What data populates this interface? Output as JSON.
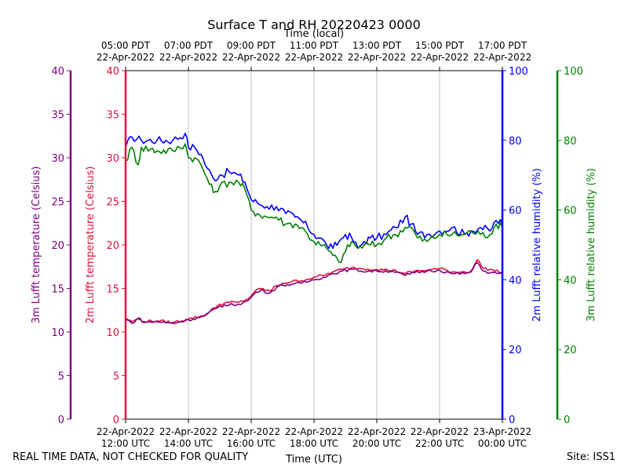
{
  "chart_data": {
    "type": "line",
    "title": "Surface T and RH 20220423 0000",
    "top_axis_label": "Time (local)",
    "bottom_axis_label": "Time (UTC)",
    "top_ticks": [
      {
        "x": 0,
        "line1": "05:00 PDT",
        "line2": "22-Apr-2022"
      },
      {
        "x": 2,
        "line1": "07:00 PDT",
        "line2": "22-Apr-2022"
      },
      {
        "x": 4,
        "line1": "09:00 PDT",
        "line2": "22-Apr-2022"
      },
      {
        "x": 6,
        "line1": "11:00 PDT",
        "line2": "22-Apr-2022"
      },
      {
        "x": 8,
        "line1": "13:00 PDT",
        "line2": "22-Apr-2022"
      },
      {
        "x": 10,
        "line1": "15:00 PDT",
        "line2": "22-Apr-2022"
      },
      {
        "x": 12,
        "line1": "17:00 PDT",
        "line2": "22-Apr-2022"
      }
    ],
    "bottom_ticks": [
      {
        "x": 0,
        "line1": "22-Apr-2022",
        "line2": "12:00 UTC"
      },
      {
        "x": 2,
        "line1": "22-Apr-2022",
        "line2": "14:00 UTC"
      },
      {
        "x": 4,
        "line1": "22-Apr-2022",
        "line2": "16:00 UTC"
      },
      {
        "x": 6,
        "line1": "22-Apr-2022",
        "line2": "18:00 UTC"
      },
      {
        "x": 8,
        "line1": "22-Apr-2022",
        "line2": "20:00 UTC"
      },
      {
        "x": 10,
        "line1": "22-Apr-2022",
        "line2": "22:00 UTC"
      },
      {
        "x": 12,
        "line1": "23-Apr-2022",
        "line2": "00:00 UTC"
      }
    ],
    "xlim": [
      0,
      12
    ],
    "grid": "vertical",
    "axes": [
      {
        "id": "t3m",
        "label": "3m Lufft temperature (Celsius)",
        "side": "left-outer",
        "color": "#800080",
        "ylim": [
          0,
          40
        ],
        "ticks": [
          0,
          5,
          10,
          15,
          20,
          25,
          30,
          35,
          40
        ]
      },
      {
        "id": "t2m",
        "label": "2m Lufft temperature (Celsius)",
        "side": "left-inner",
        "color": "#dc143c",
        "ylim": [
          0,
          40
        ],
        "ticks": [
          0,
          5,
          10,
          15,
          20,
          25,
          30,
          35,
          40
        ]
      },
      {
        "id": "rh2m",
        "label": "2m Lufft relative humidity (%)",
        "side": "right-inner",
        "color": "#0000ff",
        "ylim": [
          0,
          100
        ],
        "ticks": [
          0,
          20,
          40,
          60,
          80,
          100
        ]
      },
      {
        "id": "rh3m",
        "label": "3m Lufft relative humidity (%)",
        "side": "right-outer",
        "color": "#008000",
        "ylim": [
          0,
          100
        ],
        "ticks": [
          0,
          20,
          40,
          60,
          80,
          100
        ]
      }
    ],
    "series": [
      {
        "axis": "rh2m",
        "color": "#0000ff",
        "x": [
          0,
          0.2,
          0.5,
          1.0,
          1.5,
          1.9,
          2.0,
          2.2,
          2.4,
          2.6,
          2.8,
          3.0,
          3.3,
          3.6,
          3.8,
          4.0,
          4.2,
          4.5,
          4.8,
          5.1,
          5.4,
          5.6,
          5.8,
          6.0,
          6.2,
          6.4,
          6.6,
          6.8,
          7.0,
          7.2,
          7.4,
          7.6,
          7.8,
          8.0,
          8.3,
          8.6,
          8.9,
          9.1,
          9.3,
          9.6,
          10.0,
          10.4,
          10.8,
          11.0,
          11.3,
          11.6,
          11.8,
          12.0
        ],
        "y": [
          78,
          81,
          80,
          80,
          80,
          82,
          78,
          78,
          76,
          72,
          69,
          70,
          71,
          70,
          68,
          63,
          62,
          61,
          61,
          59,
          58,
          57,
          55,
          53,
          52,
          50,
          49,
          51,
          53,
          52,
          49,
          51,
          52,
          52,
          53,
          55,
          58,
          56,
          53,
          53,
          54,
          55,
          53,
          54,
          55,
          54,
          57,
          56
        ]
      },
      {
        "axis": "rh3m",
        "color": "#008000",
        "x": [
          0,
          0.2,
          0.4,
          0.5,
          1.0,
          1.5,
          1.9,
          2.0,
          2.2,
          2.4,
          2.6,
          2.8,
          3.0,
          3.3,
          3.6,
          3.8,
          4.0,
          4.2,
          4.5,
          4.8,
          5.1,
          5.4,
          5.6,
          5.8,
          6.0,
          6.2,
          6.4,
          6.6,
          6.8,
          7.0,
          7.2,
          7.4,
          7.6,
          7.8,
          8.0,
          8.3,
          8.6,
          8.9,
          9.1,
          9.3,
          9.6,
          10.0,
          10.4,
          10.8,
          11.0,
          11.3,
          11.6,
          11.8,
          12.0
        ],
        "y": [
          74,
          78,
          73,
          78,
          77,
          77,
          79,
          75,
          75,
          73,
          69,
          65,
          67,
          68,
          68,
          66,
          60,
          59,
          58,
          58,
          56,
          56,
          55,
          53,
          51,
          50,
          49,
          47,
          45,
          48,
          51,
          49,
          50,
          50,
          50,
          52,
          53,
          55,
          55,
          52,
          51,
          53,
          53,
          53,
          54,
          53,
          53,
          56,
          55
        ]
      },
      {
        "axis": "t2m",
        "color": "#dc143c",
        "x": [
          0,
          0.2,
          0.4,
          0.6,
          1.0,
          1.5,
          2.0,
          2.5,
          3.0,
          3.3,
          3.6,
          3.9,
          4.1,
          4.3,
          4.6,
          4.8,
          5.0,
          5.3,
          5.6,
          6.0,
          6.3,
          6.6,
          6.9,
          7.2,
          7.5,
          8.0,
          8.5,
          8.9,
          9.2,
          9.6,
          10.0,
          10.4,
          10.8,
          11.0,
          11.2,
          11.4,
          11.6,
          12.0
        ],
        "y": [
          11.5,
          11.2,
          11.5,
          11.2,
          11.3,
          11.1,
          11.5,
          11.9,
          13.2,
          13.4,
          13.4,
          13.8,
          14.6,
          15.0,
          14.7,
          15.3,
          15.6,
          15.8,
          15.9,
          16.3,
          16.5,
          16.9,
          17.2,
          17.4,
          17.3,
          17.2,
          17.1,
          16.7,
          17.0,
          17.1,
          17.3,
          16.9,
          16.9,
          17.0,
          18.3,
          17.3,
          17.2,
          16.8
        ]
      },
      {
        "axis": "t3m",
        "color": "#800080",
        "x": [
          0,
          0.2,
          0.4,
          0.6,
          1.0,
          1.5,
          2.0,
          2.5,
          3.0,
          3.3,
          3.6,
          3.9,
          4.1,
          4.3,
          4.6,
          4.8,
          5.0,
          5.3,
          5.6,
          6.0,
          6.3,
          6.6,
          6.9,
          7.2,
          7.5,
          8.0,
          8.5,
          8.9,
          9.2,
          9.6,
          10.0,
          10.4,
          10.8,
          11.0,
          11.2,
          11.4,
          11.6,
          12.0
        ],
        "y": [
          11.6,
          11.0,
          11.6,
          11.1,
          11.2,
          11.0,
          11.4,
          11.8,
          13.0,
          13.1,
          13.2,
          13.6,
          14.4,
          14.8,
          14.5,
          15.1,
          15.4,
          15.5,
          15.6,
          16.0,
          16.3,
          16.7,
          17.0,
          17.2,
          17.0,
          17.0,
          17.0,
          16.5,
          16.8,
          17.0,
          17.1,
          16.7,
          16.7,
          16.9,
          18.0,
          17.0,
          16.8,
          16.7
        ]
      }
    ]
  },
  "footer": {
    "left_note": "REAL TIME DATA, NOT CHECKED FOR QUALITY",
    "right_note": "Site: ISS1"
  }
}
